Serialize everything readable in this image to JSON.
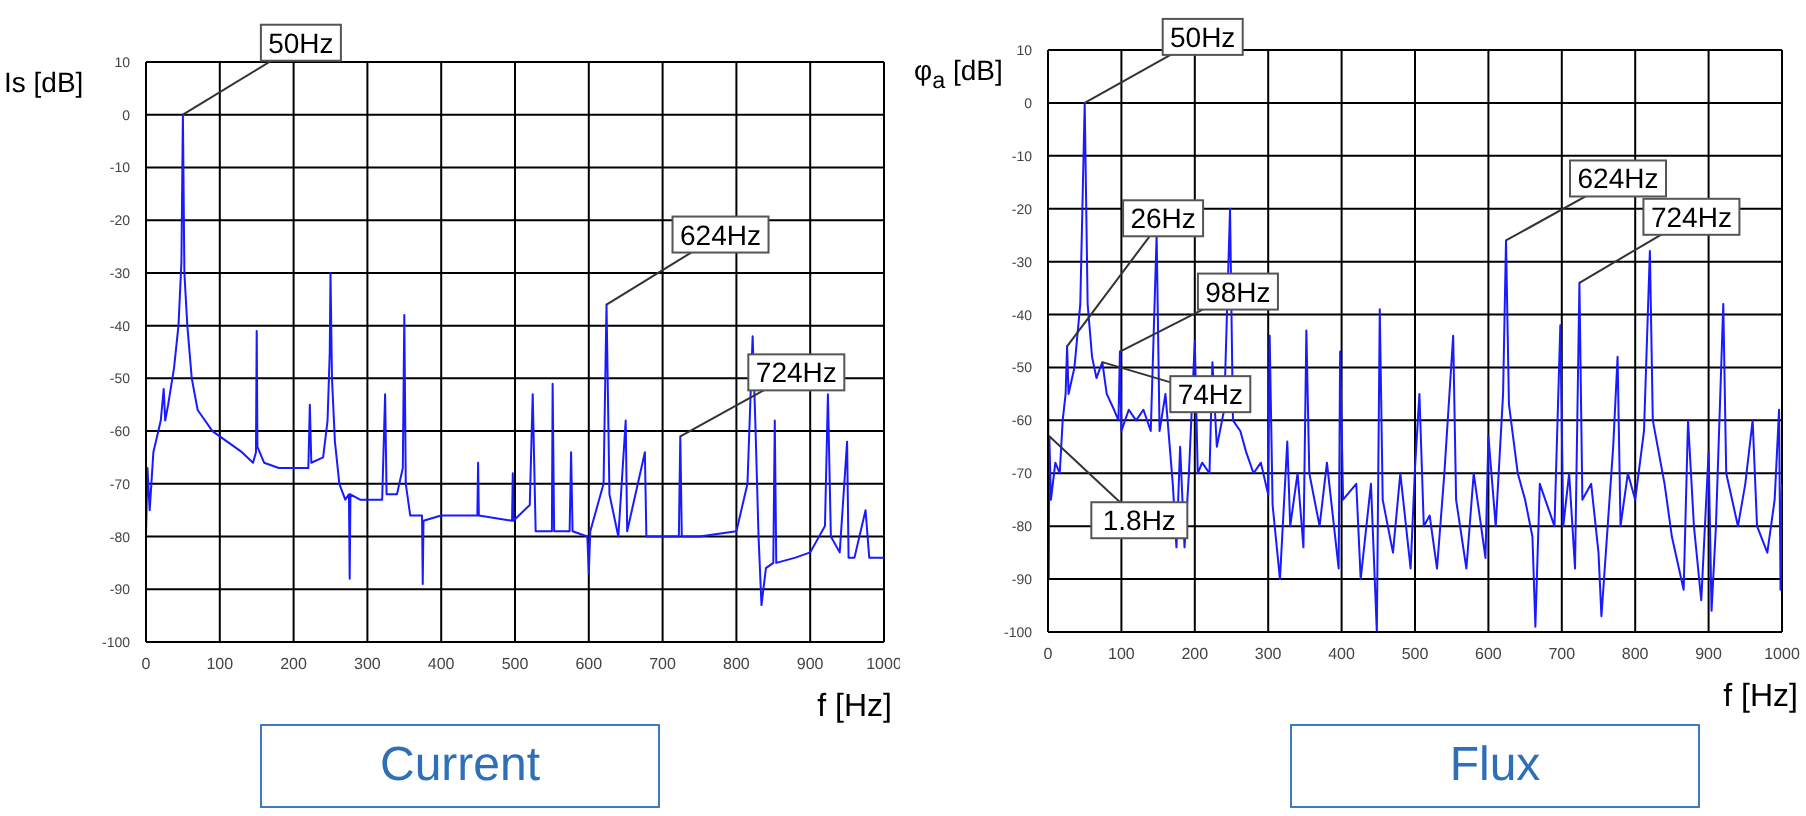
{
  "chart_data": [
    {
      "type": "line",
      "title": "Current",
      "xlabel": "f [Hz]",
      "ylabel": "Is [dB]",
      "xlim": [
        0,
        1000
      ],
      "ylim": [
        -100,
        10
      ],
      "xticks": [
        0,
        100,
        200,
        300,
        400,
        500,
        600,
        700,
        800,
        900,
        1000
      ],
      "yticks": [
        -100,
        -90,
        -80,
        -70,
        -60,
        -50,
        -40,
        -30,
        -20,
        -10,
        0,
        10
      ],
      "grid": true,
      "series": [
        {
          "color": "#1a1aff",
          "x": [
            0,
            2,
            5,
            10,
            20,
            24,
            26,
            30,
            38,
            44,
            48,
            50,
            52,
            56,
            62,
            70,
            80,
            90,
            100,
            110,
            130,
            145,
            149,
            150,
            151,
            160,
            180,
            200,
            220,
            222,
            224,
            240,
            246,
            249,
            250,
            252,
            256,
            262,
            270,
            275,
            276,
            277,
            290,
            300,
            320,
            324,
            326,
            340,
            348,
            350,
            352,
            358,
            374,
            375,
            376,
            400,
            449,
            450,
            451,
            496,
            497,
            498,
            520,
            524,
            528,
            550,
            551,
            553,
            574,
            576,
            578,
            598,
            600,
            602,
            620,
            624,
            628,
            640,
            650,
            652,
            676,
            678,
            700,
            722,
            724,
            726,
            750,
            800,
            815,
            822,
            826,
            830,
            834,
            840,
            850,
            852,
            854,
            880,
            900,
            920,
            924,
            928,
            940,
            950,
            952,
            960,
            975,
            980,
            1000
          ],
          "values": [
            -80,
            -67,
            -75,
            -64,
            -58,
            -52,
            -58,
            -55,
            -48,
            -40,
            -28,
            0,
            -30,
            -40,
            -50,
            -56,
            -58,
            -60,
            -61,
            -62,
            -64,
            -66,
            -64,
            -41,
            -63,
            -66,
            -67,
            -67,
            -67,
            -55,
            -66,
            -65,
            -58,
            -45,
            -30,
            -50,
            -62,
            -70,
            -73,
            -72,
            -88,
            -72,
            -73,
            -73,
            -73,
            -53,
            -72,
            -72,
            -67,
            -38,
            -70,
            -76,
            -76,
            -89,
            -77,
            -76,
            -76,
            -66,
            -76,
            -77,
            -68,
            -77,
            -74,
            -53,
            -79,
            -79,
            -51,
            -79,
            -79,
            -64,
            -79,
            -80,
            -87,
            -79,
            -70,
            -36,
            -72,
            -80,
            -58,
            -79,
            -64,
            -80,
            -80,
            -80,
            -61,
            -80,
            -80,
            -79,
            -70,
            -42,
            -60,
            -80,
            -93,
            -86,
            -85,
            -58,
            -85,
            -84,
            -83,
            -78,
            -53,
            -80,
            -83,
            -62,
            -84,
            -84,
            -75,
            -84,
            -84
          ]
        }
      ],
      "annotations": [
        {
          "text": "50Hz",
          "x": 50,
          "y": 0
        },
        {
          "text": "624Hz",
          "x": 624,
          "y": -36
        },
        {
          "text": "724Hz",
          "x": 724,
          "y": -61
        }
      ]
    },
    {
      "type": "line",
      "title": "Flux",
      "xlabel": "f [Hz]",
      "ylabel": "φ$_{a}$ [dB]",
      "xlim": [
        0,
        1000
      ],
      "ylim": [
        -100,
        10
      ],
      "xticks": [
        0,
        100,
        200,
        300,
        400,
        500,
        600,
        700,
        800,
        900,
        1000
      ],
      "yticks": [
        -100,
        -90,
        -80,
        -70,
        -60,
        -50,
        -40,
        -30,
        -20,
        -10,
        0,
        10
      ],
      "grid": true,
      "series": [
        {
          "color": "#1a1aff",
          "x": [
            0,
            1,
            1.8,
            4,
            10,
            16,
            20,
            24,
            26,
            28,
            36,
            44,
            50,
            54,
            60,
            66,
            74,
            80,
            90,
            96,
            98,
            100,
            110,
            120,
            130,
            140,
            148,
            152,
            160,
            170,
            175,
            180,
            186,
            192,
            200,
            204,
            210,
            220,
            224,
            230,
            240,
            248,
            252,
            262,
            270,
            280,
            290,
            300,
            302,
            306,
            316,
            326,
            330,
            340,
            348,
            352,
            356,
            370,
            380,
            396,
            398,
            402,
            420,
            426,
            440,
            448,
            452,
            456,
            470,
            480,
            494,
            500,
            506,
            512,
            520,
            530,
            540,
            552,
            556,
            570,
            580,
            596,
            600,
            610,
            620,
            624,
            628,
            640,
            650,
            660,
            664,
            670,
            690,
            698,
            702,
            710,
            718,
            724,
            728,
            740,
            750,
            754,
            770,
            776,
            780,
            790,
            800,
            812,
            820,
            824,
            840,
            850,
            866,
            872,
            880,
            890,
            900,
            904,
            910,
            920,
            924,
            940,
            950,
            960,
            966,
            980,
            990,
            996,
            998,
            1000
          ],
          "values": [
            -40,
            -90,
            -63,
            -75,
            -68,
            -70,
            -60,
            -55,
            -46,
            -55,
            -50,
            -38,
            0,
            -38,
            -48,
            -52,
            -49,
            -55,
            -58,
            -60,
            -47,
            -62,
            -58,
            -60,
            -58,
            -62,
            -25,
            -62,
            -55,
            -72,
            -84,
            -65,
            -84,
            -70,
            -45,
            -70,
            -68,
            -70,
            -49,
            -65,
            -58,
            -20,
            -60,
            -62,
            -66,
            -70,
            -68,
            -74,
            -44,
            -76,
            -90,
            -64,
            -80,
            -70,
            -84,
            -43,
            -70,
            -80,
            -68,
            -88,
            -47,
            -75,
            -72,
            -90,
            -72,
            -100,
            -39,
            -75,
            -85,
            -70,
            -88,
            -69,
            -55,
            -80,
            -78,
            -88,
            -70,
            -44,
            -75,
            -88,
            -70,
            -86,
            -63,
            -80,
            -55,
            -26,
            -57,
            -70,
            -75,
            -82,
            -99,
            -72,
            -80,
            -42,
            -80,
            -70,
            -88,
            -34,
            -75,
            -72,
            -85,
            -97,
            -65,
            -48,
            -80,
            -70,
            -75,
            -62,
            -28,
            -60,
            -72,
            -82,
            -92,
            -60,
            -80,
            -94,
            -66,
            -96,
            -80,
            -38,
            -70,
            -80,
            -72,
            -60,
            -80,
            -85,
            -75,
            -58,
            -92,
            -72
          ]
        }
      ],
      "annotations": [
        {
          "text": "50Hz",
          "x": 50,
          "y": 0
        },
        {
          "text": "26Hz",
          "x": 26,
          "y": -46
        },
        {
          "text": "98Hz",
          "x": 98,
          "y": -47
        },
        {
          "text": "74Hz",
          "x": 74,
          "y": -49
        },
        {
          "text": "1.8Hz",
          "x": 1.8,
          "y": -63
        },
        {
          "text": "624Hz",
          "x": 624,
          "y": -26
        },
        {
          "text": "724Hz",
          "x": 724,
          "y": -34
        }
      ]
    }
  ]
}
